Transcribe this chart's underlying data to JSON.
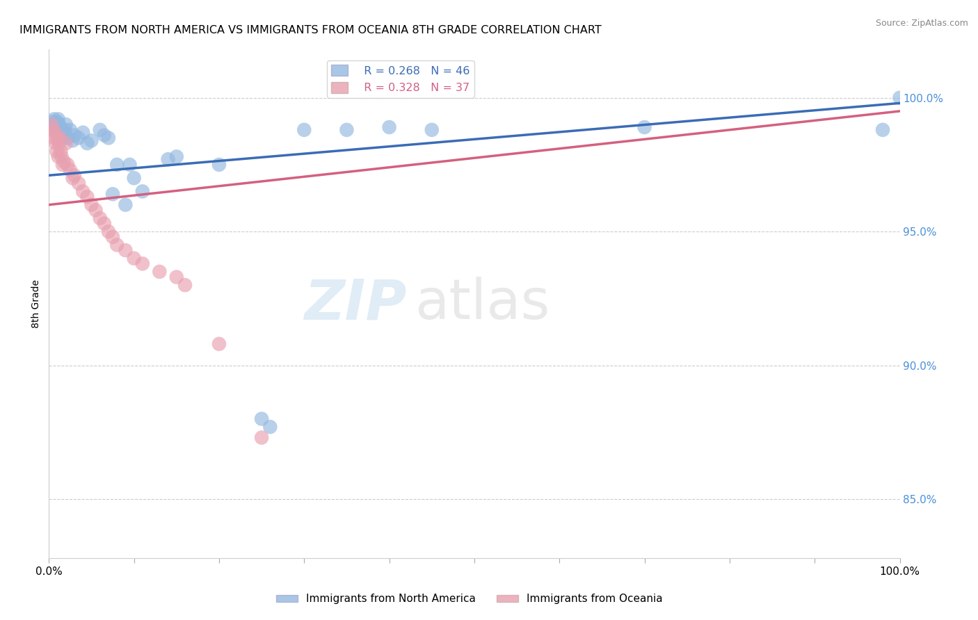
{
  "title": "IMMIGRANTS FROM NORTH AMERICA VS IMMIGRANTS FROM OCEANIA 8TH GRADE CORRELATION CHART",
  "source": "Source: ZipAtlas.com",
  "ylabel": "8th Grade",
  "xmin": 0.0,
  "xmax": 1.0,
  "ymin": 0.828,
  "ymax": 1.018,
  "legend_r1": "R = 0.268",
  "legend_n1": "N = 46",
  "legend_r2": "R = 0.328",
  "legend_n2": "N = 37",
  "color_blue": "#92b8e0",
  "color_pink": "#e8a0b0",
  "color_blue_line": "#3b6cb5",
  "color_pink_line": "#d46080",
  "watermark_zip": "ZIP",
  "watermark_atlas": "atlas",
  "blue_line_y0": 0.971,
  "blue_line_y1": 0.998,
  "pink_line_y0": 0.96,
  "pink_line_y1": 0.995,
  "scatter_blue_x": [
    0.004,
    0.005,
    0.006,
    0.007,
    0.008,
    0.009,
    0.01,
    0.011,
    0.012,
    0.013,
    0.014,
    0.015,
    0.016,
    0.017,
    0.018,
    0.019,
    0.02,
    0.022,
    0.025,
    0.028,
    0.03,
    0.035,
    0.04,
    0.045,
    0.05,
    0.06,
    0.065,
    0.07,
    0.075,
    0.08,
    0.09,
    0.095,
    0.1,
    0.11,
    0.14,
    0.15,
    0.2,
    0.25,
    0.26,
    0.3,
    0.35,
    0.4,
    0.45,
    0.7,
    0.98,
    1.0
  ],
  "scatter_blue_y": [
    0.99,
    0.991,
    0.992,
    0.988,
    0.989,
    0.99,
    0.991,
    0.992,
    0.99,
    0.989,
    0.987,
    0.988,
    0.986,
    0.985,
    0.987,
    0.988,
    0.99,
    0.985,
    0.988,
    0.984,
    0.986,
    0.985,
    0.987,
    0.983,
    0.984,
    0.988,
    0.986,
    0.985,
    0.964,
    0.975,
    0.96,
    0.975,
    0.97,
    0.965,
    0.977,
    0.978,
    0.975,
    0.88,
    0.877,
    0.988,
    0.988,
    0.989,
    0.988,
    0.989,
    0.988,
    1.0
  ],
  "scatter_pink_x": [
    0.003,
    0.005,
    0.006,
    0.007,
    0.008,
    0.009,
    0.01,
    0.011,
    0.012,
    0.013,
    0.014,
    0.015,
    0.016,
    0.018,
    0.02,
    0.022,
    0.025,
    0.028,
    0.03,
    0.035,
    0.04,
    0.045,
    0.05,
    0.055,
    0.06,
    0.065,
    0.07,
    0.075,
    0.08,
    0.09,
    0.1,
    0.11,
    0.13,
    0.15,
    0.16,
    0.2,
    0.25
  ],
  "scatter_pink_y": [
    0.99,
    0.988,
    0.985,
    0.987,
    0.983,
    0.98,
    0.985,
    0.978,
    0.983,
    0.985,
    0.98,
    0.978,
    0.975,
    0.976,
    0.983,
    0.975,
    0.973,
    0.97,
    0.971,
    0.968,
    0.965,
    0.963,
    0.96,
    0.958,
    0.955,
    0.953,
    0.95,
    0.948,
    0.945,
    0.943,
    0.94,
    0.938,
    0.935,
    0.933,
    0.93,
    0.908,
    0.873
  ]
}
